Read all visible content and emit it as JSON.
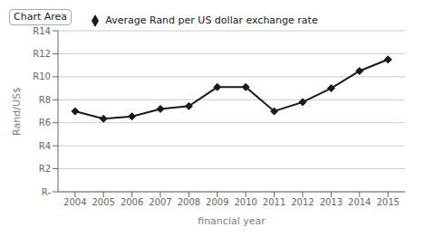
{
  "chart_data": {
    "type": "line",
    "annotations": [
      "Chart Area"
    ],
    "x": [
      2004,
      2005,
      2006,
      2007,
      2008,
      2009,
      2010,
      2011,
      2012,
      2013,
      2014,
      2015
    ],
    "series": [
      {
        "name": "Average Rand per US dollar exchange rate",
        "color": "#1a1a1a",
        "marker": "diamond",
        "values": [
          7.0,
          6.35,
          6.55,
          7.2,
          7.45,
          9.1,
          9.1,
          7.0,
          7.8,
          9.0,
          10.5,
          11.5
        ]
      }
    ],
    "x_label": "financial year",
    "y_label": "Rand/US$",
    "xlim": [
      2003.4,
      2015.6
    ],
    "xticks": [
      2004,
      2005,
      2006,
      2007,
      2008,
      2009,
      2010,
      2011,
      2012,
      2013,
      2014,
      2015
    ],
    "ylim": [
      0,
      14
    ],
    "yticks": [
      {
        "value": 0,
        "label": "R-"
      },
      {
        "value": 2,
        "label": "R2"
      },
      {
        "value": 4,
        "label": "R4"
      },
      {
        "value": 6,
        "label": "R6"
      },
      {
        "value": 8,
        "label": "R8"
      },
      {
        "value": 10,
        "label": "R10"
      },
      {
        "value": 12,
        "label": "R12"
      },
      {
        "value": 14,
        "label": "R14"
      }
    ],
    "grid": true,
    "legend": "top"
  }
}
